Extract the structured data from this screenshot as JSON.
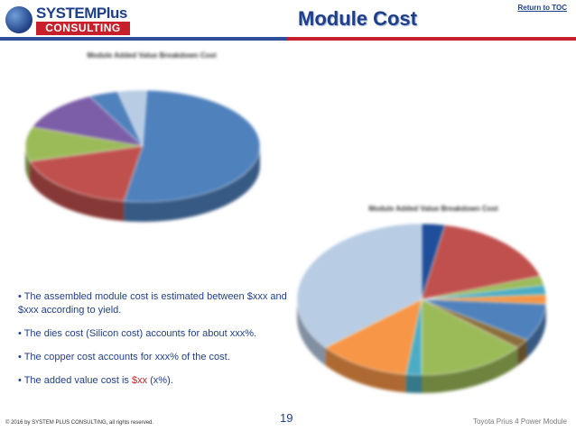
{
  "header": {
    "logo_top": "SYSTEMPlus",
    "logo_bottom": "CONSULTING",
    "title": "Module Cost",
    "return_link": "Return to TOC"
  },
  "colors": {
    "brand_blue": "#1f3f8a",
    "brand_red": "#c8202a"
  },
  "chart_data": [
    {
      "type": "pie",
      "title": "Module Added Value Breakdown Cost",
      "slices": [
        {
          "label": "",
          "value": 52,
          "color": "#4f81bd"
        },
        {
          "label": "",
          "value": 18,
          "color": "#c0504d"
        },
        {
          "label": "",
          "value": 10,
          "color": "#9bbb59"
        },
        {
          "label": "",
          "value": 12,
          "color": "#7b5ea7"
        },
        {
          "label": "",
          "value": 4,
          "color": "#4f81bd"
        },
        {
          "label": "",
          "value": 4,
          "color": "#b8cce4"
        }
      ]
    },
    {
      "type": "pie",
      "title": "Module Added Value Breakdown Cost",
      "slices": [
        {
          "label": "",
          "value": 3,
          "color": "#1f4e9a"
        },
        {
          "label": "",
          "value": 17,
          "color": "#c0504d"
        },
        {
          "label": "",
          "value": 2,
          "color": "#9bbb59"
        },
        {
          "label": "",
          "value": 2,
          "color": "#4bacc6"
        },
        {
          "label": "",
          "value": 2,
          "color": "#f79646"
        },
        {
          "label": "",
          "value": 8,
          "color": "#4f81bd"
        },
        {
          "label": "",
          "value": 2,
          "color": "#8c6e3c"
        },
        {
          "label": "",
          "value": 14,
          "color": "#9bbb59"
        },
        {
          "label": "",
          "value": 2,
          "color": "#4bacc6"
        },
        {
          "label": "",
          "value": 12,
          "color": "#f79646"
        },
        {
          "label": "",
          "value": 36,
          "color": "#b8cce4"
        }
      ]
    }
  ],
  "bullets": [
    "• The  assembled module cost is estimated between $xxx and $xxx according to yield.",
    "• The dies cost (Silicon cost) accounts for about xxx%.",
    "• The copper cost accounts for xxx% of the cost."
  ],
  "bullet4": {
    "prefix": "• The added value cost is ",
    "value": "$xx",
    "suffix": " (x%)."
  },
  "footer": {
    "copyright": "© 2016 by SYSTEM PLUS CONSULTING, all rights reserved.",
    "page_number": "19",
    "document": "Toyota Prius 4 Power Module"
  }
}
